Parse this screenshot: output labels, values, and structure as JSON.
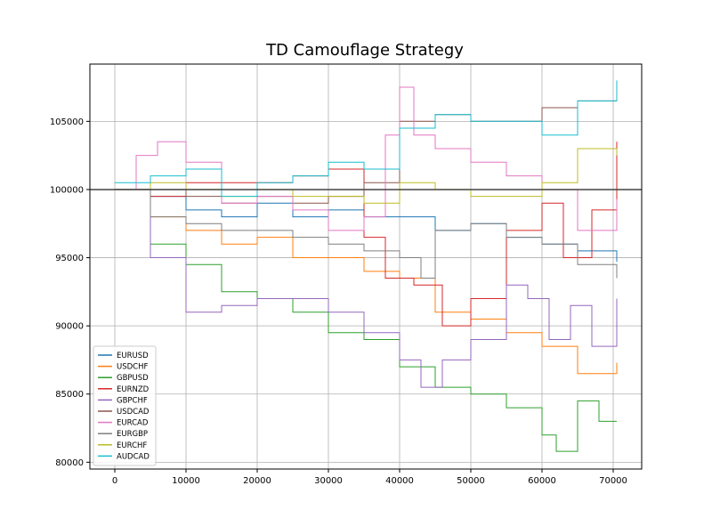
{
  "chart_data": {
    "type": "line",
    "title": "TD Camouflage Strategy",
    "xlabel": "",
    "ylabel": "",
    "xlim": [
      -3500,
      74000
    ],
    "ylim": [
      79500,
      109200
    ],
    "grid": true,
    "legend_position": "lower-left",
    "reference_line": {
      "y": 100000,
      "color": "#444444"
    },
    "x_ticks": [
      0,
      10000,
      20000,
      30000,
      40000,
      50000,
      60000,
      70000
    ],
    "x_tick_labels": [
      "0",
      "10000",
      "20000",
      "30000",
      "40000",
      "50000",
      "60000",
      "70000"
    ],
    "y_ticks": [
      80000,
      85000,
      90000,
      95000,
      100000,
      105000
    ],
    "y_tick_labels": [
      "80000",
      "85000",
      "90000",
      "95000",
      "100000",
      "105000"
    ],
    "series": [
      {
        "name": "EURUSD",
        "color": "#1f77b4",
        "x": [
          0,
          5000,
          10000,
          15000,
          20000,
          25000,
          30000,
          35000,
          40000,
          45000,
          50000,
          55000,
          60000,
          65000,
          70500
        ],
        "y": [
          100000,
          99500,
          98500,
          98000,
          99000,
          98000,
          98500,
          98000,
          98000,
          97000,
          97500,
          96500,
          96000,
          95500,
          94700
        ]
      },
      {
        "name": "USDCHF",
        "color": "#ff7f0e",
        "x": [
          0,
          5000,
          10000,
          15000,
          20000,
          25000,
          30000,
          35000,
          40000,
          45000,
          50000,
          55000,
          60000,
          65000,
          70500
        ],
        "y": [
          100000,
          98000,
          97000,
          96000,
          96500,
          95000,
          95000,
          94000,
          93500,
          91000,
          90500,
          89500,
          88500,
          86500,
          87300
        ]
      },
      {
        "name": "GBPUSD",
        "color": "#2ca02c",
        "x": [
          0,
          5000,
          10000,
          15000,
          20000,
          25000,
          30000,
          35000,
          40000,
          45000,
          50000,
          55000,
          60000,
          62000,
          65000,
          68000,
          70500
        ],
        "y": [
          100000,
          96000,
          94500,
          92500,
          92000,
          91000,
          89500,
          89000,
          87000,
          85500,
          85000,
          84000,
          82000,
          80800,
          84500,
          83000,
          83000
        ]
      },
      {
        "name": "EURNZD",
        "color": "#d62728",
        "x": [
          0,
          5000,
          10000,
          15000,
          20000,
          25000,
          30000,
          35000,
          38000,
          42000,
          46000,
          50000,
          55000,
          60000,
          63000,
          67000,
          70500
        ],
        "y": [
          100000,
          99500,
          100500,
          100500,
          100500,
          101000,
          101500,
          96500,
          93500,
          93000,
          90000,
          92000,
          97000,
          99000,
          95000,
          98500,
          103500
        ]
      },
      {
        "name": "GBPCHF",
        "color": "#9467bd",
        "x": [
          0,
          5000,
          10000,
          15000,
          20000,
          25000,
          30000,
          35000,
          40000,
          43000,
          46000,
          50000,
          55000,
          58000,
          61000,
          64000,
          67000,
          70500
        ],
        "y": [
          100000,
          95000,
          91000,
          91500,
          92000,
          92000,
          91000,
          89500,
          87500,
          85500,
          87500,
          89000,
          93000,
          92000,
          89000,
          91500,
          88500,
          92000
        ]
      },
      {
        "name": "USDCAD",
        "color": "#8c564b",
        "x": [
          0,
          5000,
          10000,
          15000,
          20000,
          25000,
          30000,
          35000,
          40000,
          45000,
          50000,
          55000,
          60000,
          65000,
          70500
        ],
        "y": [
          100000,
          100000,
          99500,
          99000,
          99500,
          99000,
          99500,
          100500,
          105000,
          105500,
          105000,
          105000,
          106000,
          106500,
          106500
        ]
      },
      {
        "name": "EURCAD",
        "color": "#e377c2",
        "x": [
          0,
          3000,
          6000,
          10000,
          15000,
          20000,
          25000,
          30000,
          35000,
          38000,
          40000,
          42000,
          45000,
          50000,
          55000,
          60000,
          65000,
          70500
        ],
        "y": [
          100000,
          102500,
          103500,
          102000,
          99000,
          99500,
          98500,
          97000,
          98000,
          104000,
          107500,
          104000,
          103000,
          102000,
          101000,
          100000,
          97000,
          99300
        ]
      },
      {
        "name": "EURGBP",
        "color": "#7f7f7f",
        "x": [
          0,
          5000,
          10000,
          15000,
          20000,
          25000,
          30000,
          35000,
          40000,
          43000,
          45000,
          50000,
          55000,
          60000,
          65000,
          70500
        ],
        "y": [
          100000,
          98000,
          97500,
          97000,
          97000,
          96500,
          96000,
          95500,
          95000,
          93500,
          97000,
          97500,
          96500,
          96000,
          94500,
          93500
        ]
      },
      {
        "name": "EURCHF",
        "color": "#bcbd22",
        "x": [
          0,
          5000,
          10000,
          15000,
          20000,
          25000,
          30000,
          35000,
          40000,
          45000,
          50000,
          55000,
          60000,
          65000,
          70500
        ],
        "y": [
          100000,
          100500,
          100000,
          99500,
          100000,
          99500,
          99500,
          99000,
          100500,
          100000,
          99500,
          99500,
          100500,
          103000,
          102500
        ]
      },
      {
        "name": "AUDCAD",
        "color": "#17becf",
        "x": [
          0,
          5000,
          10000,
          15000,
          20000,
          25000,
          30000,
          35000,
          40000,
          45000,
          50000,
          55000,
          60000,
          65000,
          70500
        ],
        "y": [
          100500,
          101000,
          101500,
          99500,
          100500,
          101000,
          102000,
          101500,
          104500,
          105500,
          105000,
          105000,
          104000,
          106500,
          108000
        ]
      }
    ]
  }
}
